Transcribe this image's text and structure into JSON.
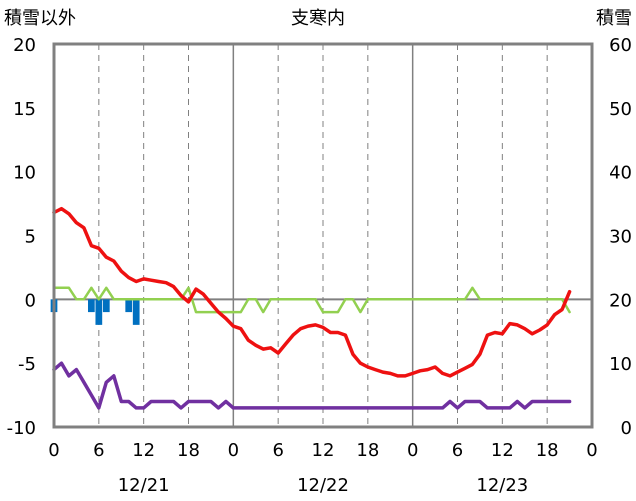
{
  "chart_data": {
    "type": "line",
    "header": {
      "left_label": "積雪以外",
      "center_label": "支寒内",
      "right_label": "積雪"
    },
    "ylim_left": [
      -10,
      20
    ],
    "yticks_left": [
      "20",
      "15",
      "10",
      "5",
      "0",
      "-5",
      "-10"
    ],
    "ylim_right": [
      0,
      60
    ],
    "yticks_right": [
      "60",
      "50",
      "40",
      "30",
      "20",
      "10",
      "0"
    ],
    "xlim": [
      0,
      72
    ],
    "xticks": [
      "0",
      "6",
      "12",
      "18",
      "0",
      "6",
      "12",
      "18",
      "0",
      "6",
      "12",
      "18",
      "0"
    ],
    "dates": [
      "12/21",
      "12/22",
      "12/23"
    ],
    "grid": "vertical dashed every 6h, solid at day boundaries",
    "colors": {
      "temperature": "#ee1111",
      "snow_depth": "#7030a0",
      "wind_speed": "#92d050",
      "precipitation": "#0070c0",
      "zero_line": "#808080",
      "frame": "#808080"
    },
    "series": [
      {
        "key": "temperature",
        "axis": "left",
        "points": [
          [
            0,
            6.8
          ],
          [
            1,
            7.1
          ],
          [
            2,
            6.7
          ],
          [
            3,
            6.0
          ],
          [
            4,
            5.6
          ],
          [
            5,
            4.2
          ],
          [
            6,
            4.0
          ],
          [
            7,
            3.3
          ],
          [
            8,
            3.0
          ],
          [
            9,
            2.2
          ],
          [
            10,
            1.7
          ],
          [
            11,
            1.4
          ],
          [
            12,
            1.6
          ],
          [
            13,
            1.5
          ],
          [
            14,
            1.4
          ],
          [
            15,
            1.3
          ],
          [
            16,
            1.0
          ],
          [
            17,
            0.3
          ],
          [
            18,
            -0.2
          ],
          [
            19,
            0.8
          ],
          [
            20,
            0.4
          ],
          [
            21,
            -0.3
          ],
          [
            22,
            -1.0
          ],
          [
            23,
            -1.5
          ],
          [
            24,
            -2.1
          ],
          [
            25,
            -2.3
          ],
          [
            26,
            -3.2
          ],
          [
            27,
            -3.6
          ],
          [
            28,
            -3.9
          ],
          [
            29,
            -3.8
          ],
          [
            30,
            -4.2
          ],
          [
            31,
            -3.5
          ],
          [
            32,
            -2.8
          ],
          [
            33,
            -2.3
          ],
          [
            34,
            -2.1
          ],
          [
            35,
            -2.0
          ],
          [
            36,
            -2.2
          ],
          [
            37,
            -2.6
          ],
          [
            38,
            -2.6
          ],
          [
            39,
            -2.8
          ],
          [
            40,
            -4.3
          ],
          [
            41,
            -5.0
          ],
          [
            42,
            -5.3
          ],
          [
            43,
            -5.5
          ],
          [
            44,
            -5.7
          ],
          [
            45,
            -5.8
          ],
          [
            46,
            -6.0
          ],
          [
            47,
            -6.0
          ],
          [
            48,
            -5.8
          ],
          [
            49,
            -5.6
          ],
          [
            50,
            -5.5
          ],
          [
            51,
            -5.3
          ],
          [
            52,
            -5.8
          ],
          [
            53,
            -6.0
          ],
          [
            54,
            -5.7
          ],
          [
            55,
            -5.4
          ],
          [
            56,
            -5.1
          ],
          [
            57,
            -4.3
          ],
          [
            58,
            -2.8
          ],
          [
            59,
            -2.6
          ],
          [
            60,
            -2.7
          ],
          [
            61,
            -1.9
          ],
          [
            62,
            -2.0
          ],
          [
            63,
            -2.3
          ],
          [
            64,
            -2.7
          ],
          [
            65,
            -2.4
          ],
          [
            66,
            -2.0
          ],
          [
            67,
            -1.2
          ],
          [
            68,
            -0.8
          ],
          [
            69,
            0.6
          ]
        ]
      },
      {
        "key": "snow_depth",
        "axis": "right",
        "points": [
          [
            0,
            9
          ],
          [
            1,
            10
          ],
          [
            2,
            8
          ],
          [
            3,
            9
          ],
          [
            4,
            7
          ],
          [
            5,
            5
          ],
          [
            6,
            3
          ],
          [
            7,
            7
          ],
          [
            8,
            8
          ],
          [
            9,
            4
          ],
          [
            10,
            4
          ],
          [
            11,
            3
          ],
          [
            12,
            3
          ],
          [
            13,
            4
          ],
          [
            14,
            4
          ],
          [
            15,
            4
          ],
          [
            16,
            4
          ],
          [
            17,
            3
          ],
          [
            18,
            4
          ],
          [
            19,
            4
          ],
          [
            20,
            4
          ],
          [
            21,
            4
          ],
          [
            22,
            3
          ],
          [
            23,
            4
          ],
          [
            24,
            3
          ],
          [
            25,
            3
          ],
          [
            26,
            3
          ],
          [
            27,
            3
          ],
          [
            28,
            3
          ],
          [
            29,
            3
          ],
          [
            30,
            3
          ],
          [
            31,
            3
          ],
          [
            32,
            3
          ],
          [
            33,
            3
          ],
          [
            34,
            3
          ],
          [
            35,
            3
          ],
          [
            36,
            3
          ],
          [
            37,
            3
          ],
          [
            38,
            3
          ],
          [
            39,
            3
          ],
          [
            40,
            3
          ],
          [
            41,
            3
          ],
          [
            42,
            3
          ],
          [
            43,
            3
          ],
          [
            44,
            3
          ],
          [
            45,
            3
          ],
          [
            46,
            3
          ],
          [
            47,
            3
          ],
          [
            48,
            3
          ],
          [
            49,
            3
          ],
          [
            50,
            3
          ],
          [
            51,
            3
          ],
          [
            52,
            3
          ],
          [
            53,
            4
          ],
          [
            54,
            3
          ],
          [
            55,
            4
          ],
          [
            56,
            4
          ],
          [
            57,
            4
          ],
          [
            58,
            3
          ],
          [
            59,
            3
          ],
          [
            60,
            3
          ],
          [
            61,
            3
          ],
          [
            62,
            4
          ],
          [
            63,
            3
          ],
          [
            64,
            4
          ],
          [
            65,
            4
          ],
          [
            66,
            4
          ],
          [
            67,
            4
          ],
          [
            68,
            4
          ],
          [
            69,
            4
          ]
        ]
      },
      {
        "key": "wind_speed",
        "axis": "left",
        "points": [
          [
            0,
            0.9
          ],
          [
            1,
            0.9
          ],
          [
            2,
            0.9
          ],
          [
            3,
            0
          ],
          [
            4,
            0
          ],
          [
            5,
            0.9
          ],
          [
            6,
            0
          ],
          [
            7,
            0.9
          ],
          [
            8,
            0
          ],
          [
            9,
            0
          ],
          [
            10,
            0
          ],
          [
            11,
            0
          ],
          [
            12,
            0
          ],
          [
            13,
            0
          ],
          [
            14,
            0
          ],
          [
            15,
            0
          ],
          [
            16,
            0
          ],
          [
            17,
            0
          ],
          [
            18,
            0.9
          ],
          [
            19,
            -1
          ],
          [
            20,
            -1
          ],
          [
            21,
            -1
          ],
          [
            22,
            -1
          ],
          [
            23,
            -1
          ],
          [
            24,
            -1
          ],
          [
            25,
            -1
          ],
          [
            26,
            0
          ],
          [
            27,
            0
          ],
          [
            28,
            -1
          ],
          [
            29,
            0
          ],
          [
            30,
            0
          ],
          [
            31,
            0
          ],
          [
            32,
            0
          ],
          [
            33,
            0
          ],
          [
            34,
            0
          ],
          [
            35,
            0
          ],
          [
            36,
            -1
          ],
          [
            37,
            -1
          ],
          [
            38,
            -1
          ],
          [
            39,
            0
          ],
          [
            40,
            0
          ],
          [
            41,
            -1
          ],
          [
            42,
            0
          ],
          [
            43,
            0
          ],
          [
            44,
            0
          ],
          [
            45,
            0
          ],
          [
            46,
            0
          ],
          [
            47,
            0
          ],
          [
            48,
            0
          ],
          [
            49,
            0
          ],
          [
            50,
            0
          ],
          [
            51,
            0
          ],
          [
            52,
            0
          ],
          [
            53,
            0
          ],
          [
            54,
            0
          ],
          [
            55,
            0
          ],
          [
            56,
            0.9
          ],
          [
            57,
            0
          ],
          [
            58,
            0
          ],
          [
            59,
            0
          ],
          [
            60,
            0
          ],
          [
            61,
            0
          ],
          [
            62,
            0
          ],
          [
            63,
            0
          ],
          [
            64,
            0
          ],
          [
            65,
            0
          ],
          [
            66,
            0
          ],
          [
            67,
            0
          ],
          [
            68,
            0
          ],
          [
            69,
            -1
          ]
        ]
      }
    ],
    "precipitation_bars": {
      "axis": "left",
      "bars": [
        [
          0,
          -1
        ],
        [
          5,
          -1
        ],
        [
          6,
          -2
        ],
        [
          7,
          -1
        ],
        [
          10,
          -1
        ],
        [
          11,
          -2
        ]
      ]
    }
  }
}
